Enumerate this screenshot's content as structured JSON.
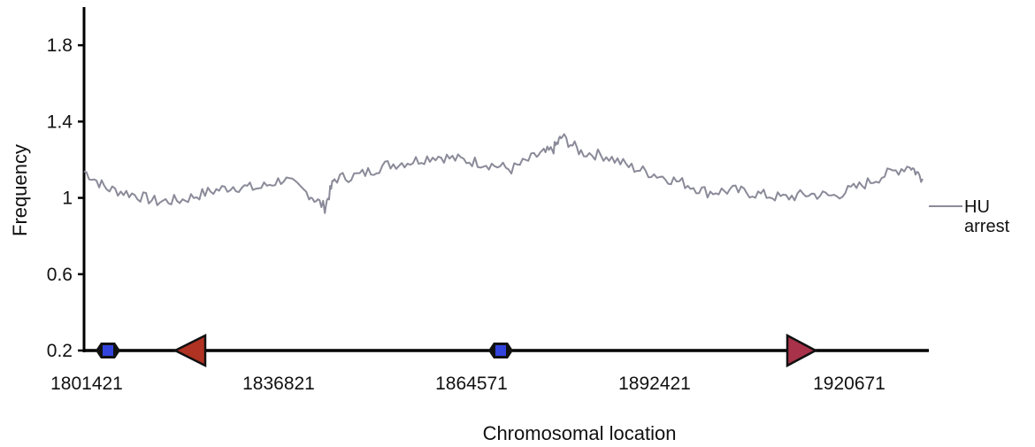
{
  "chart_data": {
    "type": "line",
    "title": "",
    "xlabel": "Chromosomal location",
    "ylabel": "Frequency",
    "xlim": [
      1801421,
      1935000
    ],
    "ylim": [
      0.2,
      2.0
    ],
    "yticks": [
      "0.2",
      "0.6",
      "1",
      "1.4",
      "1.8"
    ],
    "xticks": [
      "1801421",
      "1836821",
      "1864571",
      "1892421",
      "1920671"
    ],
    "grid": false,
    "legend_position": "right",
    "series": [
      {
        "name": "HU arrest",
        "color": "#8a8a99",
        "x": [
          1801421,
          1805000,
          1809000,
          1813000,
          1817000,
          1821000,
          1825000,
          1829000,
          1833000,
          1837000,
          1839500,
          1841000,
          1845000,
          1849000,
          1853000,
          1857000,
          1861000,
          1865000,
          1869000,
          1873000,
          1875500,
          1877000,
          1880000,
          1884000,
          1888000,
          1892000,
          1896000,
          1900000,
          1904000,
          1908000,
          1912000,
          1916000,
          1920000,
          1924000,
          1928000,
          1932000,
          1934000
        ],
        "values": [
          1.14,
          1.05,
          1.02,
          0.98,
          0.99,
          1.03,
          1.06,
          1.05,
          1.1,
          1.02,
          0.95,
          1.1,
          1.12,
          1.17,
          1.19,
          1.22,
          1.2,
          1.18,
          1.15,
          1.22,
          1.25,
          1.32,
          1.24,
          1.22,
          1.16,
          1.12,
          1.08,
          1.03,
          1.04,
          1.02,
          1.0,
          1.02,
          1.01,
          1.06,
          1.12,
          1.17,
          1.1
        ]
      }
    ],
    "markers": [
      {
        "position": 1801421,
        "shape": "hexagon",
        "color": "#3344dd"
      },
      {
        "position": 1806500,
        "shape": "triangle-left",
        "color": "#b03222"
      },
      {
        "position": 1840000,
        "shape": "hexagon",
        "color": "#3344dd"
      },
      {
        "position": 1865000,
        "shape": "triangle-right",
        "color": "#a8324a"
      }
    ]
  }
}
